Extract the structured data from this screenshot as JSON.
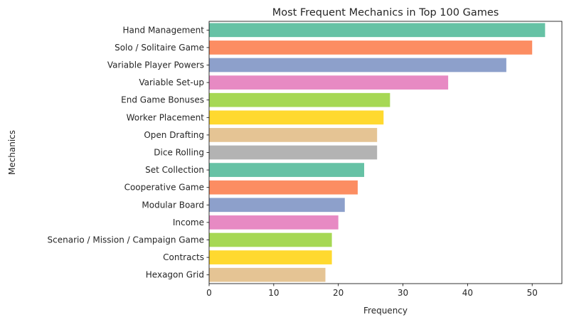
{
  "chart_data": {
    "type": "bar",
    "orientation": "horizontal",
    "title": "Most Frequent Mechanics in Top 100 Games",
    "xlabel": "Frequency",
    "ylabel": "Mechanics",
    "xlim": [
      0,
      54.6
    ],
    "xticks": [
      0,
      10,
      20,
      30,
      40,
      50
    ],
    "grid": false,
    "categories": [
      "Hand Management",
      "Solo / Solitaire Game",
      "Variable Player Powers",
      "Variable Set-up",
      "End Game Bonuses",
      "Worker Placement",
      "Open Drafting",
      "Dice Rolling",
      "Set Collection",
      "Cooperative Game",
      "Modular Board",
      "Income",
      "Scenario / Mission / Campaign Game",
      "Contracts",
      "Hexagon Grid"
    ],
    "values": [
      52,
      50,
      46,
      37,
      28,
      27,
      26,
      26,
      24,
      23,
      21,
      20,
      19,
      19,
      18
    ],
    "colors": [
      "#66c2a5",
      "#fc8d62",
      "#8da0cb",
      "#e78ac3",
      "#a6d854",
      "#ffd92f",
      "#e5c494",
      "#b3b3b3",
      "#66c2a5",
      "#fc8d62",
      "#8da0cb",
      "#e78ac3",
      "#a6d854",
      "#ffd92f",
      "#e5c494"
    ]
  }
}
